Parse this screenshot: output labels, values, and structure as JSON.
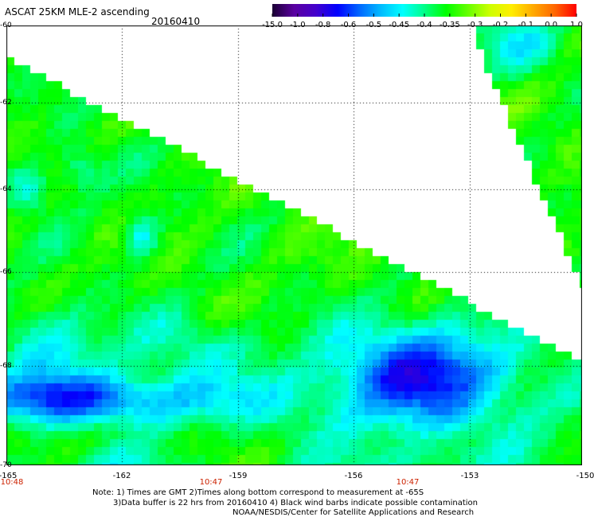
{
  "header": {
    "title": "ASCAT 25KM MLE-2 ascending",
    "date": "20160410"
  },
  "colorbar": {
    "labels": [
      "-15.0",
      "-1.0",
      "-0.8",
      "-0.6",
      "-0.5",
      "-0.45",
      "-0.4",
      "-0.35",
      "-0.3",
      "-0.2",
      "-0.1",
      "0.0",
      "1.0"
    ],
    "colors": [
      "#1a0033",
      "#5a00a0",
      "#4400cc",
      "#0000ff",
      "#0066ff",
      "#00bbff",
      "#00ffff",
      "#00ff88",
      "#00ff00",
      "#66ff00",
      "#ccff00",
      "#ffee00",
      "#ffaa00",
      "#ff6600",
      "#ff0000"
    ]
  },
  "map": {
    "lat_labels": [
      "-60",
      "-62",
      "-64",
      "-66",
      "-68",
      "-70"
    ],
    "lon_labels": [
      "-165",
      "-162",
      "-159",
      "-156",
      "-153",
      "-150"
    ],
    "time_labels": [
      "10:48",
      "10:47",
      "10:47"
    ],
    "lat_range": [
      -70,
      -60
    ],
    "lon_range": [
      -165,
      -150
    ]
  },
  "notes": {
    "line1": "Note: 1) Times are GMT 2)Times along bottom correspond to measurement at -65S",
    "line2": "3)Data buffer is 22 hrs from 20160410 4) Black wind barbs indicate possible contamination",
    "line3": "NOAA/NESDIS/Center for Satellite Applications and Research"
  }
}
